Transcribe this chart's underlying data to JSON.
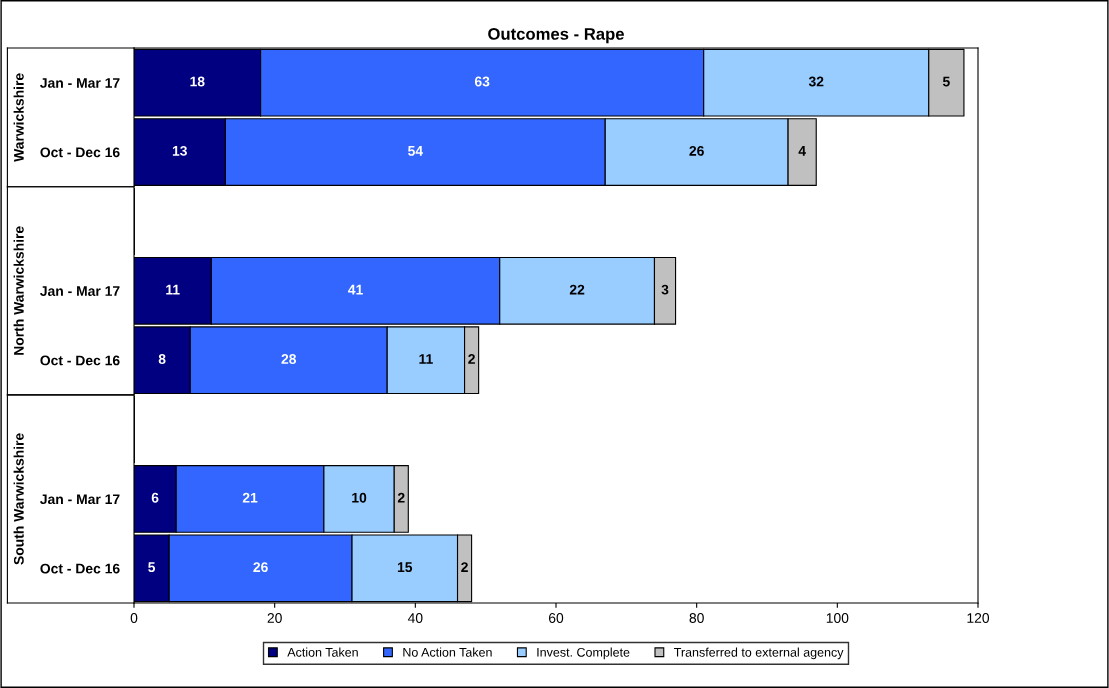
{
  "chart_data": {
    "type": "bar",
    "orientation": "horizontal",
    "stacked": true,
    "title": "Outcomes - Rape",
    "categories": [
      "Jan - Mar 17",
      "Oct - Dec 16",
      null,
      "Jan - Mar 17",
      "Oct - Dec 16",
      null,
      "Jan - Mar 17",
      "Oct - Dec 16"
    ],
    "series": [
      {
        "name": "Action Taken",
        "color": "#000080",
        "values": [
          18,
          13,
          null,
          11,
          8,
          null,
          6,
          5
        ]
      },
      {
        "name": "No Action Taken",
        "color": "#3366ff",
        "values": [
          63,
          54,
          null,
          41,
          28,
          null,
          21,
          26
        ]
      },
      {
        "name": "Invest. Complete",
        "color": "#99ccff",
        "values": [
          32,
          26,
          null,
          22,
          11,
          null,
          10,
          15
        ]
      },
      {
        "name": "Transferred to external agency",
        "color": "#c0c0c0",
        "values": [
          5,
          4,
          null,
          3,
          2,
          null,
          2,
          2
        ]
      }
    ],
    "annotations": [
      "Warwickshire",
      "North Warwickshire",
      "South Warwickshire"
    ],
    "xlim": [
      0,
      120
    ],
    "xticks": [
      0,
      20,
      40,
      60,
      80,
      100,
      120
    ],
    "data_labels": true,
    "grid": false,
    "legend": "bottom"
  }
}
